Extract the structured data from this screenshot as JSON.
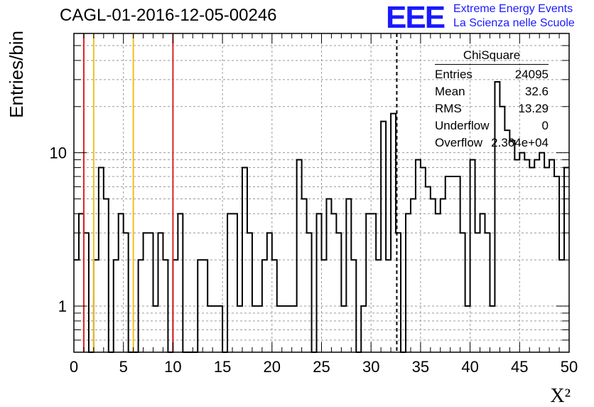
{
  "title": "CAGL-01-2016-12-05-00246",
  "logo": {
    "mark": "EEE",
    "line1": "Extreme Energy Events",
    "line2": "La Scienza nelle Scuole",
    "color": "#1a1aff"
  },
  "stats": {
    "header": "ChiSquare",
    "rows": [
      {
        "label": "Entries",
        "value": "24095"
      },
      {
        "label": "Mean",
        "value": "32.6"
      },
      {
        "label": "RMS",
        "value": "13.29"
      },
      {
        "label": "Underflow",
        "value": "0"
      },
      {
        "label": "Overflow",
        "value": "2.364e+04"
      }
    ]
  },
  "chart_data": {
    "type": "histogram",
    "xlabel": "X²",
    "ylabel": "Entries/bin",
    "xlim": [
      0,
      50
    ],
    "ylim": [
      0.5,
      60
    ],
    "y_scale": "log",
    "grid": true,
    "x_ticks": [
      0,
      5,
      10,
      15,
      20,
      25,
      30,
      35,
      40,
      45,
      50
    ],
    "y_tick_labels": [
      {
        "value": 1,
        "label": "1"
      },
      {
        "value": 10,
        "label": "10"
      }
    ],
    "bin_width": 0.5,
    "bin_start": 0,
    "counts": [
      2,
      4,
      3,
      0,
      2,
      8,
      5,
      0,
      2,
      4,
      3,
      0,
      0,
      2,
      3,
      3,
      1,
      3,
      2,
      0,
      2,
      4,
      0,
      0,
      0,
      2,
      2,
      1,
      1,
      1,
      0,
      4,
      4,
      1,
      8,
      3,
      1,
      1,
      2,
      3,
      2,
      1,
      1,
      1,
      1,
      9,
      5,
      3,
      0,
      4,
      2,
      5,
      4,
      3,
      1,
      5,
      2,
      0,
      1,
      4,
      4,
      2,
      16,
      2,
      18,
      3,
      0,
      4,
      5,
      9,
      8,
      6,
      5,
      4,
      5,
      7,
      7,
      7,
      3,
      1,
      9,
      3,
      4,
      3,
      1,
      29,
      20,
      14,
      12,
      9,
      10,
      9,
      8,
      9,
      10,
      8,
      9,
      7,
      2,
      8
    ],
    "markers": [
      {
        "x": 1,
        "color": "#e02020",
        "style": "solid"
      },
      {
        "x": 2,
        "color": "#f0c020",
        "style": "solid"
      },
      {
        "x": 6,
        "color": "#f0c020",
        "style": "solid"
      },
      {
        "x": 10,
        "color": "#e02020",
        "style": "solid"
      },
      {
        "x": 32.6,
        "color": "#000000",
        "style": "dashed"
      }
    ]
  }
}
